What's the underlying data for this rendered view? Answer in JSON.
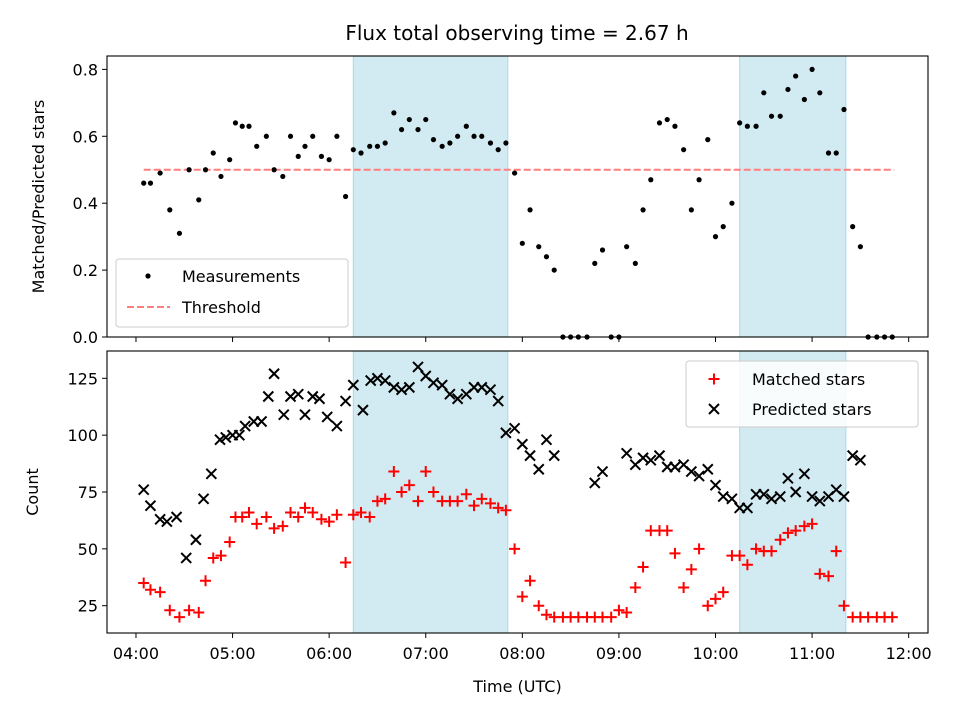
{
  "title": "Flux total observing time = 2.67 h",
  "colors": {
    "measurements": "#000000",
    "threshold": "#ff7f7f",
    "matched": "#ff0000",
    "predicted": "#000000",
    "shade": "#add8e6"
  },
  "chart_data": [
    {
      "type": "scatter",
      "ylabel": "Matched/Predicted stars",
      "xlim": [
        3.7,
        12.2
      ],
      "ylim": [
        0,
        0.84
      ],
      "yticks": [
        0.0,
        0.2,
        0.4,
        0.6,
        0.8
      ],
      "ytick_labels": [
        "0.0",
        "0.2",
        "0.4",
        "0.6",
        "0.8"
      ],
      "shaded_ranges": [
        [
          6.25,
          7.85
        ],
        [
          10.25,
          11.35
        ]
      ],
      "legend": {
        "position": "lower-left",
        "entries": [
          "Measurements",
          "Threshold"
        ]
      },
      "threshold": {
        "name": "Threshold",
        "x": [
          4.08,
          11.85
        ],
        "y": 0.5
      },
      "series": [
        {
          "name": "Measurements",
          "marker": "dot",
          "x": [
            4.08,
            4.15,
            4.25,
            4.35,
            4.45,
            4.55,
            4.65,
            4.72,
            4.8,
            4.88,
            4.97,
            5.03,
            5.1,
            5.17,
            5.25,
            5.35,
            5.43,
            5.52,
            5.6,
            5.68,
            5.75,
            5.83,
            5.92,
            6.0,
            6.08,
            6.17,
            6.25,
            6.33,
            6.42,
            6.5,
            6.58,
            6.67,
            6.75,
            6.83,
            6.92,
            7.0,
            7.08,
            7.17,
            7.25,
            7.33,
            7.42,
            7.5,
            7.58,
            7.67,
            7.75,
            7.83,
            7.92,
            8.0,
            8.08,
            8.17,
            8.25,
            8.33,
            8.42,
            8.5,
            8.58,
            8.67,
            8.75,
            8.83,
            8.92,
            9.0,
            9.08,
            9.17,
            9.25,
            9.33,
            9.42,
            9.5,
            9.58,
            9.67,
            9.75,
            9.83,
            9.92,
            10.0,
            10.08,
            10.17,
            10.25,
            10.33,
            10.42,
            10.5,
            10.58,
            10.67,
            10.75,
            10.83,
            10.92,
            11.0,
            11.08,
            11.17,
            11.25,
            11.33,
            11.42,
            11.5,
            11.58,
            11.67,
            11.75,
            11.83
          ],
          "y": [
            0.46,
            0.46,
            0.49,
            0.38,
            0.31,
            0.5,
            0.41,
            0.5,
            0.55,
            0.48,
            0.53,
            0.64,
            0.63,
            0.63,
            0.57,
            0.6,
            0.5,
            0.48,
            0.6,
            0.54,
            0.57,
            0.6,
            0.54,
            0.53,
            0.6,
            0.42,
            0.56,
            0.55,
            0.57,
            0.57,
            0.58,
            0.67,
            0.62,
            0.65,
            0.62,
            0.65,
            0.59,
            0.57,
            0.58,
            0.6,
            0.63,
            0.6,
            0.6,
            0.58,
            0.56,
            0.58,
            0.49,
            0.28,
            0.38,
            0.27,
            0.24,
            0.2,
            0.0,
            0.0,
            0.0,
            0.0,
            0.22,
            0.26,
            0.0,
            0.0,
            0.27,
            0.22,
            0.38,
            0.47,
            0.64,
            0.65,
            0.63,
            0.56,
            0.38,
            0.47,
            0.59,
            0.3,
            0.33,
            0.4,
            0.64,
            0.63,
            0.63,
            0.73,
            0.66,
            0.66,
            0.74,
            0.78,
            0.71,
            0.8,
            0.73,
            0.55,
            0.55,
            0.68,
            0.33,
            0.27,
            0.0,
            0.0,
            0.0,
            0.0
          ]
        }
      ]
    },
    {
      "type": "scatter",
      "ylabel": "Count",
      "xlabel": "Time (UTC)",
      "xlim": [
        3.7,
        12.2
      ],
      "ylim": [
        13,
        137
      ],
      "yticks": [
        25,
        50,
        75,
        100,
        125
      ],
      "ytick_labels": [
        "25",
        "50",
        "75",
        "100",
        "125"
      ],
      "xticks": [
        4,
        5,
        6,
        7,
        8,
        9,
        10,
        11,
        12
      ],
      "xtick_labels": [
        "04:00",
        "05:00",
        "06:00",
        "07:00",
        "08:00",
        "09:00",
        "10:00",
        "11:00",
        "12:00"
      ],
      "shaded_ranges": [
        [
          6.25,
          7.85
        ],
        [
          10.25,
          11.35
        ]
      ],
      "legend": {
        "position": "upper-right",
        "entries": [
          "Matched stars",
          "Predicted stars"
        ]
      },
      "series": [
        {
          "name": "Matched stars",
          "marker": "plus",
          "x": [
            4.08,
            4.15,
            4.25,
            4.35,
            4.45,
            4.55,
            4.65,
            4.72,
            4.8,
            4.88,
            4.97,
            5.03,
            5.1,
            5.17,
            5.25,
            5.35,
            5.43,
            5.52,
            5.6,
            5.68,
            5.75,
            5.83,
            5.92,
            6.0,
            6.08,
            6.17,
            6.25,
            6.33,
            6.42,
            6.5,
            6.58,
            6.67,
            6.75,
            6.83,
            6.92,
            7.0,
            7.08,
            7.17,
            7.25,
            7.33,
            7.42,
            7.5,
            7.58,
            7.67,
            7.75,
            7.83,
            7.92,
            8.0,
            8.08,
            8.17,
            8.25,
            8.33,
            8.42,
            8.5,
            8.58,
            8.67,
            8.75,
            8.83,
            8.92,
            9.0,
            9.08,
            9.17,
            9.25,
            9.33,
            9.42,
            9.5,
            9.58,
            9.67,
            9.75,
            9.83,
            9.92,
            10.0,
            10.08,
            10.17,
            10.25,
            10.33,
            10.42,
            10.5,
            10.58,
            10.67,
            10.75,
            10.83,
            10.92,
            11.0,
            11.08,
            11.17,
            11.25,
            11.33,
            11.42,
            11.5,
            11.58,
            11.67,
            11.75,
            11.83
          ],
          "y": [
            35,
            32,
            31,
            23,
            20,
            23,
            22,
            36,
            46,
            47,
            53,
            64,
            64,
            66,
            61,
            64,
            59,
            60,
            66,
            64,
            68,
            66,
            63,
            62,
            65,
            44,
            65,
            66,
            64,
            71,
            72,
            84,
            75,
            78,
            71,
            84,
            75,
            71,
            71,
            71,
            74,
            69,
            72,
            70,
            68,
            67,
            50,
            29,
            36,
            25,
            21,
            20,
            20,
            20,
            20,
            20,
            20,
            20,
            20,
            23,
            22,
            33,
            42,
            58,
            58,
            58,
            48,
            33,
            41,
            50,
            25,
            28,
            31,
            47,
            47,
            43,
            50,
            49,
            49,
            54,
            57,
            58,
            60,
            61,
            39,
            38,
            49,
            25,
            20,
            20,
            20,
            20,
            20,
            20
          ]
        },
        {
          "name": "Predicted stars",
          "marker": "x",
          "x": [
            4.08,
            4.15,
            4.25,
            4.32,
            4.42,
            4.52,
            4.62,
            4.7,
            4.78,
            4.87,
            4.93,
            5.0,
            5.07,
            5.13,
            5.22,
            5.3,
            5.37,
            5.43,
            5.53,
            5.6,
            5.68,
            5.75,
            5.83,
            5.9,
            5.98,
            6.08,
            6.17,
            6.25,
            6.35,
            6.43,
            6.5,
            6.58,
            6.67,
            6.75,
            6.83,
            6.92,
            7.0,
            7.08,
            7.17,
            7.25,
            7.33,
            7.42,
            7.5,
            7.58,
            7.67,
            7.75,
            7.83,
            7.92,
            8.0,
            8.08,
            8.17,
            8.25,
            8.33,
            8.75,
            8.83,
            9.08,
            9.17,
            9.25,
            9.33,
            9.42,
            9.5,
            9.58,
            9.67,
            9.75,
            9.83,
            9.92,
            10.0,
            10.08,
            10.17,
            10.25,
            10.33,
            10.42,
            10.5,
            10.58,
            10.67,
            10.75,
            10.83,
            10.92,
            11.0,
            11.08,
            11.17,
            11.25,
            11.33,
            11.42,
            11.5
          ],
          "y": [
            76,
            69,
            63,
            62,
            64,
            46,
            54,
            72,
            83,
            98,
            99,
            100,
            100,
            104,
            106,
            106,
            117,
            127,
            109,
            117,
            118,
            109,
            117,
            116,
            108,
            104,
            115,
            122,
            111,
            124,
            125,
            124,
            121,
            120,
            121,
            130,
            126,
            123,
            122,
            118,
            116,
            118,
            121,
            121,
            120,
            115,
            101,
            103,
            96,
            91,
            85,
            98,
            91,
            79,
            84,
            92,
            87,
            90,
            89,
            91,
            86,
            86,
            87,
            84,
            82,
            85,
            78,
            73,
            72,
            68,
            68,
            74,
            74,
            72,
            73,
            81,
            75,
            83,
            73,
            71,
            73,
            76,
            73,
            91,
            89
          ]
        }
      ]
    }
  ]
}
